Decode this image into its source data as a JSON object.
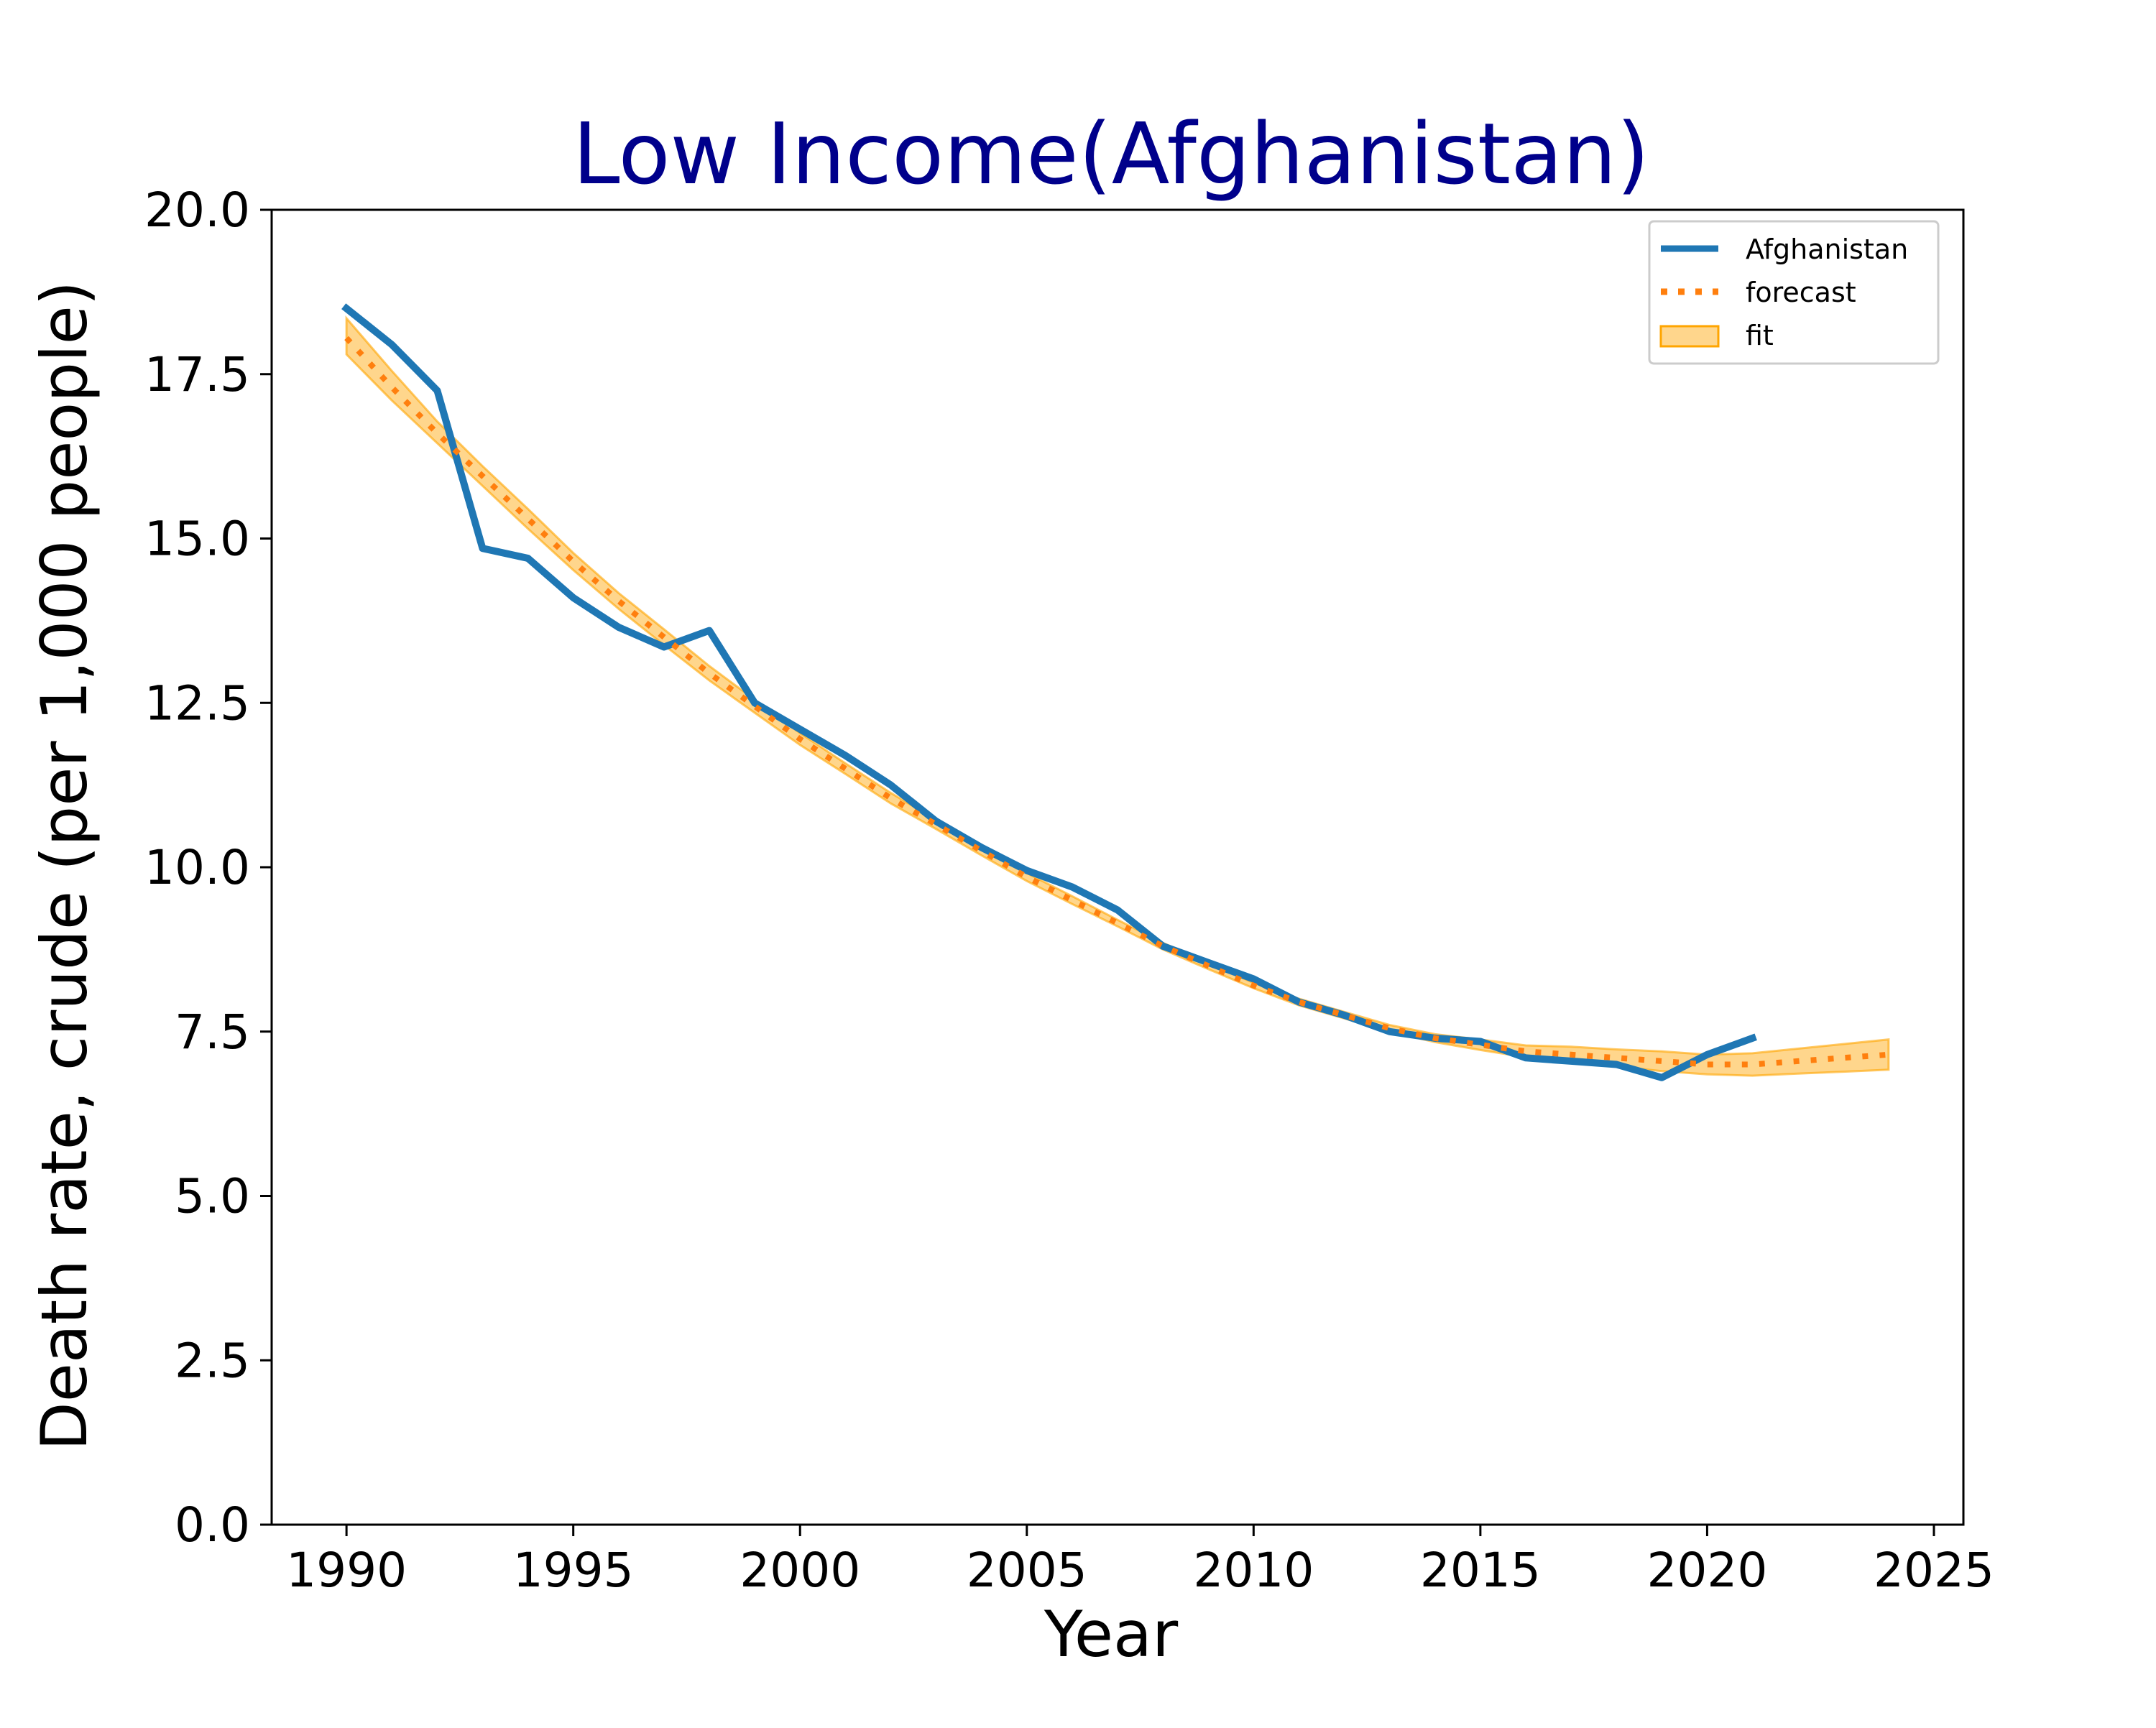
{
  "colors": {
    "actual": "#1f77b4",
    "forecast": "#ff7f0e",
    "fit_fill": "#ffa500",
    "title": "#00008b",
    "axis": "#000000",
    "background": "#ffffff"
  },
  "chart_data": {
    "type": "line",
    "title": "Low Income(Afghanistan)",
    "xlabel": "Year",
    "ylabel": "Death rate, crude (per 1,000 people)",
    "xlim": [
      1988.35,
      2025.65
    ],
    "ylim": [
      0,
      20
    ],
    "xticks": [
      1990,
      1995,
      2000,
      2005,
      2010,
      2015,
      2020,
      2025
    ],
    "xtick_labels": [
      "1990",
      "1995",
      "2000",
      "2005",
      "2010",
      "2015",
      "2020",
      "2025"
    ],
    "yticks": [
      0,
      2.5,
      5,
      7.5,
      10,
      12.5,
      15,
      17.5,
      20
    ],
    "ytick_labels": [
      "0.0",
      "2.5",
      "5.0",
      "7.5",
      "10.0",
      "12.5",
      "15.0",
      "17.5",
      "20.0"
    ],
    "grid": false,
    "legend_position": "top-right",
    "legend": [
      "Afghanistan",
      "forecast",
      "fit"
    ],
    "series": [
      {
        "name": "Afghanistan",
        "style": "solid",
        "x": [
          1990,
          1991,
          1992,
          1993,
          1994,
          1995,
          1996,
          1997,
          1998,
          1999,
          2000,
          2001,
          2002,
          2003,
          2004,
          2005,
          2006,
          2007,
          2008,
          2009,
          2010,
          2011,
          2012,
          2013,
          2014,
          2015,
          2016,
          2017,
          2018,
          2019,
          2020,
          2021
        ],
        "y": [
          18.5,
          17.95,
          17.25,
          14.85,
          14.7,
          14.1,
          13.65,
          13.35,
          13.6,
          12.5,
          12.1,
          11.7,
          11.25,
          10.7,
          10.3,
          9.95,
          9.7,
          9.35,
          8.8,
          8.55,
          8.3,
          7.95,
          7.75,
          7.5,
          7.4,
          7.35,
          7.1,
          7.05,
          7.0,
          6.8,
          7.15,
          7.4
        ]
      },
      {
        "name": "forecast",
        "style": "dotted",
        "x": [
          1990,
          1991,
          1992,
          1993,
          1994,
          1995,
          1996,
          1997,
          1998,
          1999,
          2000,
          2001,
          2002,
          2003,
          2004,
          2005,
          2006,
          2007,
          2008,
          2009,
          2010,
          2011,
          2012,
          2013,
          2014,
          2015,
          2016,
          2017,
          2018,
          2019,
          2020,
          2021,
          2022,
          2023,
          2024
        ],
        "y": [
          18.05,
          17.3,
          16.6,
          15.95,
          15.3,
          14.65,
          14.05,
          13.5,
          12.95,
          12.45,
          11.95,
          11.5,
          11.05,
          10.65,
          10.25,
          9.85,
          9.5,
          9.15,
          8.8,
          8.5,
          8.2,
          7.95,
          7.75,
          7.55,
          7.4,
          7.3,
          7.2,
          7.15,
          7.1,
          7.05,
          7.0,
          7.0,
          7.05,
          7.1,
          7.15
        ]
      }
    ],
    "fit_band": {
      "name": "fit",
      "x": [
        1990,
        1991,
        1992,
        1993,
        1994,
        1995,
        1996,
        1997,
        1998,
        1999,
        2000,
        2001,
        2002,
        2003,
        2004,
        2005,
        2006,
        2007,
        2008,
        2009,
        2010,
        2011,
        2012,
        2013,
        2014,
        2015,
        2016,
        2017,
        2018,
        2019,
        2020,
        2021,
        2022,
        2023,
        2024
      ],
      "lower": [
        17.8,
        17.1,
        16.45,
        15.8,
        15.15,
        14.52,
        13.93,
        13.38,
        12.84,
        12.35,
        11.86,
        11.42,
        10.97,
        10.58,
        10.18,
        9.79,
        9.44,
        9.1,
        8.75,
        8.45,
        8.16,
        7.9,
        7.7,
        7.5,
        7.34,
        7.22,
        7.11,
        7.03,
        6.97,
        6.9,
        6.85,
        6.83,
        6.86,
        6.89,
        6.92
      ],
      "upper": [
        18.35,
        17.55,
        16.78,
        16.1,
        15.45,
        14.78,
        14.17,
        13.62,
        13.06,
        12.55,
        12.04,
        11.58,
        11.13,
        10.72,
        10.32,
        9.91,
        9.56,
        9.2,
        8.85,
        8.55,
        8.24,
        8.0,
        7.8,
        7.6,
        7.46,
        7.38,
        7.29,
        7.27,
        7.23,
        7.2,
        7.15,
        7.17,
        7.24,
        7.31,
        7.38
      ]
    }
  }
}
